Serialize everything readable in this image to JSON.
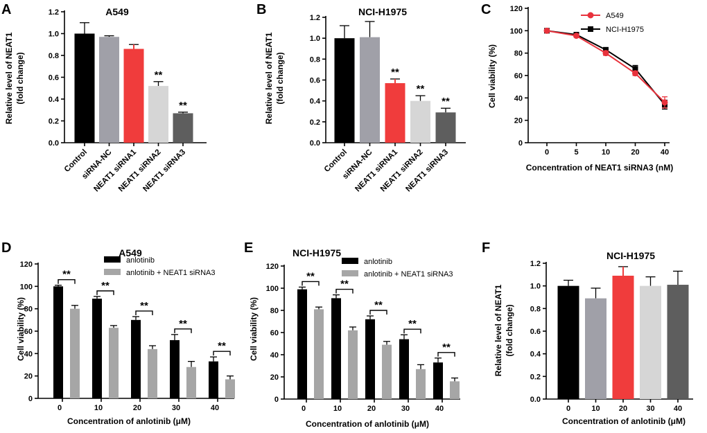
{
  "chart_data": [
    {
      "id": "A",
      "panel": "A",
      "type": "bar",
      "title": "A549",
      "ylabel": [
        "Relative level of NEAT1",
        "(fold change)"
      ],
      "xlabel": "",
      "ylim": [
        0,
        1.2
      ],
      "yticks": [
        "0.0",
        "0.2",
        "0.4",
        "0.6",
        "0.8",
        "1.0",
        "1.2"
      ],
      "categories": [
        "Control",
        "siRNA-NC",
        "NEAT1 siRNA1",
        "NEAT1 siRNA2",
        "NEAT1 siRNA3"
      ],
      "values": [
        1.0,
        0.97,
        0.86,
        0.52,
        0.27
      ],
      "errors": [
        0.1,
        0.01,
        0.04,
        0.04,
        0.01
      ],
      "colors": [
        "#000000",
        "#a0a0a8",
        "#f03c3c",
        "#d6d6d6",
        "#5e5e5e"
      ],
      "annotations": [
        "",
        "",
        "",
        "**",
        "**"
      ]
    },
    {
      "id": "B",
      "panel": "B",
      "type": "bar",
      "title": "NCI-H1975",
      "ylabel": [
        "Relative level of NEAT1",
        "(fold change)"
      ],
      "xlabel": "",
      "ylim": [
        0,
        1.2
      ],
      "yticks": [
        "0.0",
        "0.2",
        "0.4",
        "0.6",
        "0.8",
        "1.0",
        "1.2"
      ],
      "categories": [
        "Control",
        "siRNA-NC",
        "NEAT1 siRNA1",
        "NEAT1 siRNA2",
        "NEAT1 siRNA3"
      ],
      "values": [
        1.0,
        1.01,
        0.57,
        0.4,
        0.29
      ],
      "errors": [
        0.12,
        0.15,
        0.04,
        0.05,
        0.04
      ],
      "colors": [
        "#000000",
        "#a0a0a8",
        "#f03c3c",
        "#d6d6d6",
        "#5e5e5e"
      ],
      "annotations": [
        "",
        "",
        "**",
        "**",
        "**"
      ]
    },
    {
      "id": "C",
      "panel": "C",
      "type": "line",
      "title": "",
      "ylabel": [
        "Cell viability (%)"
      ],
      "xlabel": "Concentration of NEAT1 siRNA3 (nM)",
      "ylim": [
        0,
        120
      ],
      "yticks": [
        "0",
        "20",
        "40",
        "60",
        "80",
        "100",
        "120"
      ],
      "x": [
        "0",
        "5",
        "10",
        "20",
        "40"
      ],
      "series": [
        {
          "name": "A549",
          "values": [
            100,
            95.5,
            80,
            62,
            36
          ],
          "errors": [
            1,
            1,
            2,
            2,
            5
          ],
          "color": "#e8323c",
          "marker": "circle"
        },
        {
          "name": "NCI-H1975",
          "values": [
            100,
            96.5,
            83,
            66,
            34
          ],
          "errors": [
            1,
            1,
            1.5,
            3,
            4
          ],
          "color": "#000000",
          "marker": "square"
        }
      ],
      "legend": "top-right"
    },
    {
      "id": "D",
      "panel": "D",
      "type": "bar",
      "title": "A549",
      "ylabel": [
        "Cell viability (%)"
      ],
      "xlabel": "Concentration of anlotinib (μM)",
      "ylim": [
        0,
        120
      ],
      "yticks": [
        "0",
        "20",
        "40",
        "60",
        "80",
        "100",
        "120"
      ],
      "categories": [
        "0",
        "10",
        "20",
        "30",
        "40"
      ],
      "series": [
        {
          "name": "anlotinib",
          "values": [
            100,
            89,
            70,
            52,
            33
          ],
          "errors": [
            1,
            2,
            3,
            5,
            4
          ],
          "color": "#000000"
        },
        {
          "name": "anlotinib + NEAT1 siRNA3",
          "values": [
            80,
            63,
            44,
            28,
            17
          ],
          "errors": [
            3,
            2,
            3,
            5,
            3
          ],
          "color": "#a6a6a6"
        }
      ],
      "annotations": [
        "**",
        "**",
        "**",
        "**",
        "**"
      ],
      "legend": "top-right"
    },
    {
      "id": "E",
      "panel": "E",
      "type": "bar",
      "title": "NCI-H1975",
      "ylabel": [
        "Cell viability (%)"
      ],
      "xlabel": "Concentration of anlotinib (μM)",
      "ylim": [
        0,
        120
      ],
      "yticks": [
        "0",
        "20",
        "40",
        "60",
        "80",
        "100",
        "120"
      ],
      "categories": [
        "0",
        "10",
        "20",
        "30",
        "40"
      ],
      "series": [
        {
          "name": "anlotinib",
          "values": [
            99,
            91,
            72,
            54,
            33
          ],
          "errors": [
            2,
            3,
            3,
            4,
            4
          ],
          "color": "#000000"
        },
        {
          "name": "anlotinib + NEAT1 siRNA3",
          "values": [
            81,
            62,
            49,
            27,
            16
          ],
          "errors": [
            2,
            3,
            3,
            4,
            3
          ],
          "color": "#a6a6a6"
        }
      ],
      "annotations": [
        "**",
        "**",
        "**",
        "**",
        "**"
      ],
      "legend": "top-right"
    },
    {
      "id": "F",
      "panel": "F",
      "type": "bar",
      "title": "NCI-H1975",
      "ylabel": [
        "Relative level of NEAT1",
        "(fold change)"
      ],
      "xlabel": "Concentration of anlotinib (μM)",
      "ylim": [
        0,
        1.2
      ],
      "yticks": [
        "0.0",
        "0.2",
        "0.4",
        "0.6",
        "0.8",
        "1.0",
        "1.2"
      ],
      "categories": [
        "0",
        "10",
        "20",
        "30",
        "40"
      ],
      "values": [
        1.0,
        0.89,
        1.09,
        1.0,
        1.01
      ],
      "errors": [
        0.05,
        0.09,
        0.08,
        0.08,
        0.12
      ],
      "colors": [
        "#000000",
        "#a0a0a8",
        "#f03c3c",
        "#d6d6d6",
        "#5e5e5e"
      ],
      "annotations": [
        "",
        "",
        "",
        "",
        ""
      ]
    }
  ]
}
